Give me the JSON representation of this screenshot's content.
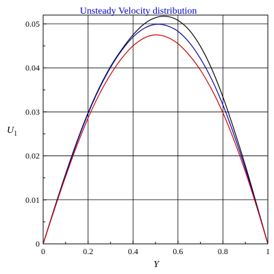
{
  "chart_data": {
    "type": "line",
    "title": "Unsteady Velocity distribution",
    "title_color": "#0000cc",
    "xlabel": "Y",
    "ylabel": {
      "main": "U",
      "sub": "1"
    },
    "xlim": [
      0,
      1
    ],
    "ylim": [
      0,
      0.052
    ],
    "grid": true,
    "x_ticks": [
      0,
      0.2,
      0.4,
      0.6,
      0.8,
      1
    ],
    "x_tick_labels": [
      "0",
      "0.2",
      "0.4",
      "0.6",
      "0.8",
      "1"
    ],
    "y_ticks": [
      0,
      0.01,
      0.02,
      0.03,
      0.04,
      0.05
    ],
    "y_tick_labels": [
      "0",
      "0.01",
      "0.02",
      "0.03",
      "0.04",
      "0.05"
    ],
    "x": [
      0,
      0.05,
      0.1,
      0.15,
      0.2,
      0.25,
      0.3,
      0.35,
      0.4,
      0.45,
      0.5,
      0.55,
      0.6,
      0.65,
      0.7,
      0.75,
      0.8,
      0.85,
      0.9,
      0.95,
      1
    ],
    "series": [
      {
        "color": "#000000",
        "values": [
          0,
          0.0081,
          0.0159,
          0.0232,
          0.0298,
          0.0355,
          0.0403,
          0.0442,
          0.0475,
          0.05,
          0.0514,
          0.0517,
          0.0508,
          0.0486,
          0.0449,
          0.0398,
          0.0334,
          0.0259,
          0.0178,
          0.009,
          0
        ]
      },
      {
        "color": "#0000aa",
        "values": [
          0,
          0.008,
          0.0157,
          0.023,
          0.0296,
          0.0353,
          0.0401,
          0.044,
          0.047,
          0.049,
          0.0499,
          0.0496,
          0.0483,
          0.0458,
          0.0421,
          0.0374,
          0.0316,
          0.0247,
          0.0171,
          0.0088,
          0
        ]
      },
      {
        "color": "#cc0000",
        "values": [
          0,
          0.0078,
          0.0153,
          0.0223,
          0.0286,
          0.034,
          0.0385,
          0.0422,
          0.045,
          0.0468,
          0.0475,
          0.047,
          0.0455,
          0.0429,
          0.0395,
          0.0351,
          0.0298,
          0.0235,
          0.0164,
          0.0085,
          0
        ]
      }
    ]
  }
}
